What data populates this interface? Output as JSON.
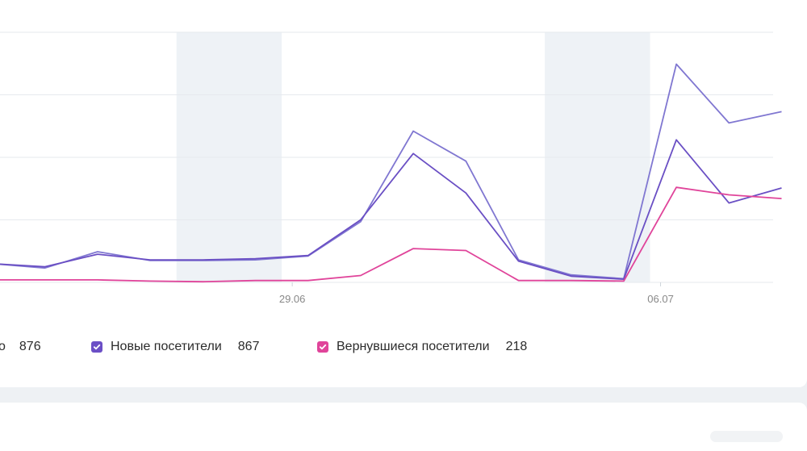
{
  "chart_data": {
    "type": "line",
    "x_tick_labels": [
      "29.06",
      "06.07"
    ],
    "y_gridline_count": 5,
    "weekend_bands": true,
    "series": [
      {
        "name": "Всего",
        "color": "#8077d1",
        "total": "876",
        "values": [
          3,
          2.3,
          4.9,
          3.5,
          3.5,
          3.6,
          4.2,
          9.7,
          24.2,
          19.4,
          3.6,
          1.2,
          0.6,
          34.9,
          25.5,
          27.3
        ]
      },
      {
        "name": "Новые посетители",
        "color": "#6a4fc4",
        "total": "867",
        "values": [
          3,
          2.5,
          4.5,
          3.6,
          3.6,
          3.8,
          4.3,
          10,
          20.6,
          14.3,
          3.4,
          1,
          0.5,
          22.8,
          12.7,
          15.1
        ]
      },
      {
        "name": "Вернувшиеся посетители",
        "color": "#e0449a",
        "total": "218",
        "values": [
          0.4,
          0.4,
          0.4,
          0.2,
          0.1,
          0.3,
          0.3,
          1.1,
          5.4,
          5.1,
          0.3,
          0.3,
          0.2,
          15.2,
          14.0,
          13.4
        ]
      }
    ]
  },
  "legend": {
    "total_label_fragment": "о",
    "total_value": "876",
    "new_label": "Новые посетители",
    "new_value": "867",
    "returning_label": "Вернувшиеся посетители",
    "returning_value": "218"
  },
  "colors": {
    "new_checkbox": "#6b4fc6",
    "returning_checkbox": "#e0449a",
    "grid": "#e6e9ee",
    "weekend_band": "#eef2f6",
    "tick_label": "#888888"
  }
}
